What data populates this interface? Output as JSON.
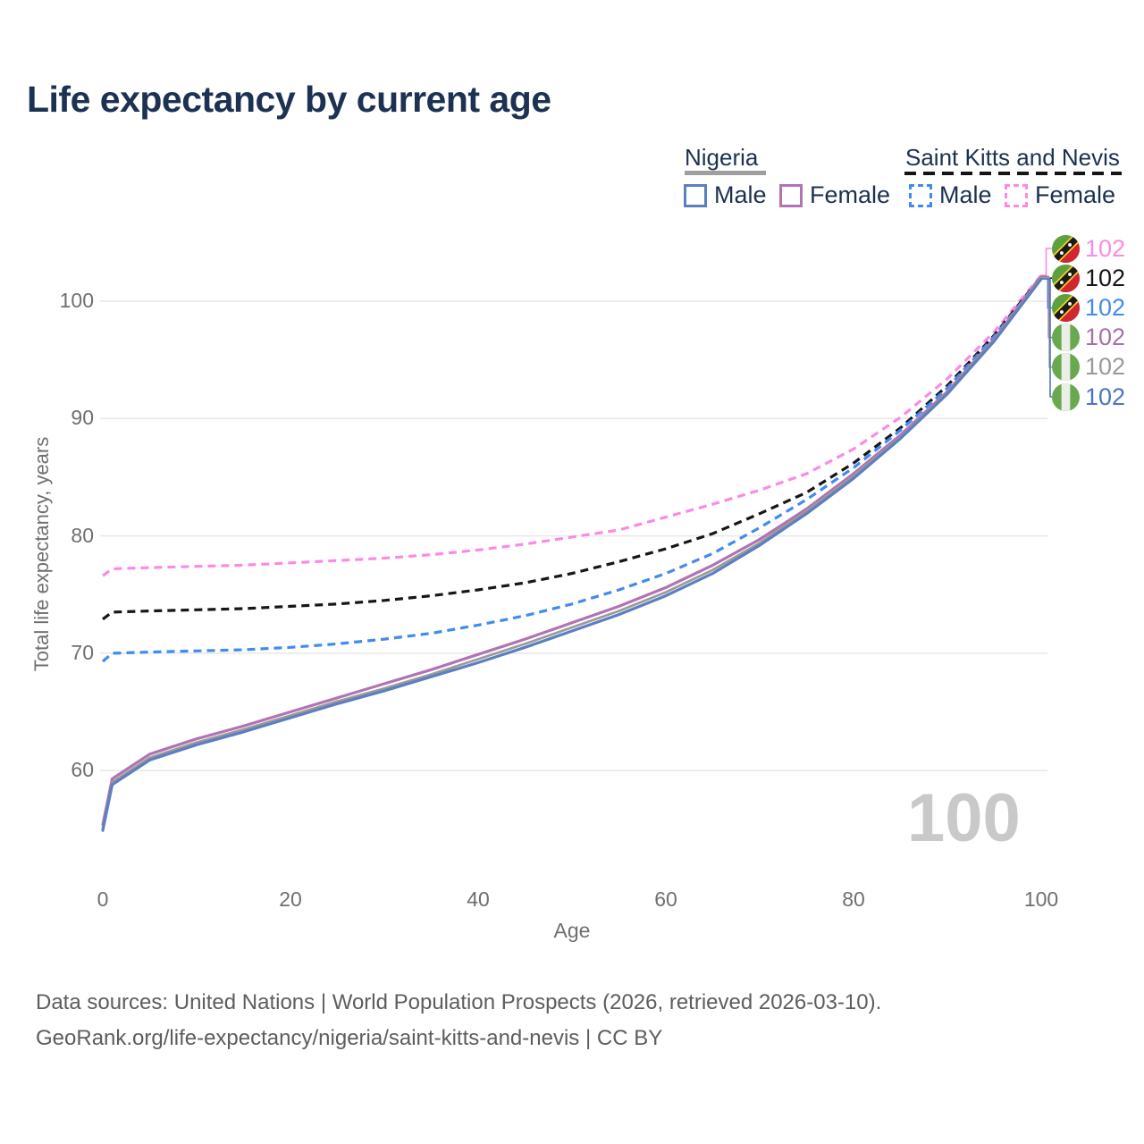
{
  "title": "Life expectancy by current age",
  "legend": {
    "groups": [
      {
        "country": "Nigeria",
        "style": "solid",
        "items": [
          {
            "label": "Male",
            "color": "#5b7fc0"
          },
          {
            "label": "Female",
            "color": "#b273b2"
          }
        ]
      },
      {
        "country": "Saint Kitts and Nevis",
        "style": "dashed",
        "items": [
          {
            "label": "Male",
            "color": "#418bee"
          },
          {
            "label": "Female",
            "color": "#fb8ae5"
          }
        ]
      }
    ]
  },
  "end_labels": [
    {
      "flag": "saint-kitts-and-nevis",
      "value": "102",
      "color": "#fb8ae5"
    },
    {
      "flag": "saint-kitts-and-nevis",
      "value": "102",
      "color": "#161616"
    },
    {
      "flag": "saint-kitts-and-nevis",
      "value": "102",
      "color": "#418bee"
    },
    {
      "flag": "nigeria",
      "value": "102",
      "color": "#a770ae"
    },
    {
      "flag": "nigeria",
      "value": "102",
      "color": "#9a9a9a"
    },
    {
      "flag": "nigeria",
      "value": "102",
      "color": "#4a75c4"
    }
  ],
  "watermark": "100",
  "footer": {
    "line1": "Data sources: United Nations | World Population Prospects (2026, retrieved 2026-03-10).",
    "line2": "GeoRank.org/life-expectancy/nigeria/saint-kitts-and-nevis | CC BY"
  },
  "chart_data": {
    "type": "line",
    "title": "Life expectancy by current age",
    "xlabel": "Age",
    "ylabel": "Total life expectancy, years",
    "xlim": [
      0,
      100
    ],
    "ylim": [
      53,
      104
    ],
    "x_ticks": [
      0,
      20,
      40,
      60,
      80,
      100
    ],
    "y_ticks": [
      60,
      70,
      80,
      90,
      100
    ],
    "grid": "horizontal",
    "legend_position": "top-right",
    "hover_age": "100",
    "x": [
      0,
      1,
      5,
      10,
      15,
      20,
      25,
      30,
      35,
      40,
      45,
      50,
      55,
      60,
      65,
      70,
      75,
      80,
      85,
      90,
      95,
      100
    ],
    "series": [
      {
        "name": "Saint Kitts and Nevis Female",
        "country": "Saint Kitts and Nevis",
        "sex": "female",
        "style": "dashed",
        "color": "#fb8ae5",
        "values": [
          76.6,
          77.2,
          77.3,
          77.4,
          77.5,
          77.7,
          77.9,
          78.1,
          78.4,
          78.8,
          79.3,
          79.9,
          80.5,
          81.6,
          82.7,
          83.9,
          85.3,
          87.4,
          90.1,
          93.4,
          97.4,
          102.2
        ]
      },
      {
        "name": "Saint Kitts and Nevis Both sexes",
        "country": "Saint Kitts and Nevis",
        "sex": "both",
        "style": "dashed",
        "color": "#161616",
        "values": [
          72.9,
          73.5,
          73.6,
          73.7,
          73.8,
          74.0,
          74.2,
          74.5,
          74.9,
          75.4,
          76.0,
          76.8,
          77.8,
          78.9,
          80.2,
          81.9,
          83.7,
          86.2,
          89.2,
          92.8,
          97.1,
          102.1
        ]
      },
      {
        "name": "Saint Kitts and Nevis Male",
        "country": "Saint Kitts and Nevis",
        "sex": "male",
        "style": "dashed",
        "color": "#418bee",
        "values": [
          69.3,
          70.0,
          70.1,
          70.2,
          70.3,
          70.5,
          70.8,
          71.2,
          71.7,
          72.4,
          73.2,
          74.2,
          75.4,
          76.8,
          78.5,
          80.7,
          83.1,
          85.8,
          89.0,
          92.6,
          97.0,
          102.0
        ]
      },
      {
        "name": "Nigeria Female",
        "country": "Nigeria",
        "sex": "female",
        "style": "solid",
        "color": "#b273b2",
        "values": [
          55.4,
          59.3,
          61.4,
          62.7,
          63.8,
          65.0,
          66.2,
          67.4,
          68.6,
          69.9,
          71.2,
          72.6,
          74.0,
          75.6,
          77.5,
          79.7,
          82.3,
          85.3,
          88.6,
          92.3,
          96.8,
          102.1
        ]
      },
      {
        "name": "Nigeria Both sexes",
        "country": "Nigeria",
        "sex": "both",
        "style": "solid",
        "color": "#9a9a9a",
        "values": [
          55.1,
          59.0,
          61.1,
          62.4,
          63.5,
          64.7,
          65.9,
          67.0,
          68.2,
          69.5,
          70.8,
          72.2,
          73.6,
          75.2,
          77.1,
          79.4,
          82.1,
          85.1,
          88.4,
          92.2,
          96.7,
          102.0
        ]
      },
      {
        "name": "Nigeria Male",
        "country": "Nigeria",
        "sex": "male",
        "style": "solid",
        "color": "#5b7fc0",
        "values": [
          54.9,
          58.8,
          60.9,
          62.2,
          63.3,
          64.5,
          65.7,
          66.8,
          68.0,
          69.2,
          70.5,
          71.9,
          73.3,
          74.9,
          76.8,
          79.2,
          81.9,
          84.9,
          88.3,
          92.1,
          96.6,
          101.9
        ]
      }
    ]
  }
}
